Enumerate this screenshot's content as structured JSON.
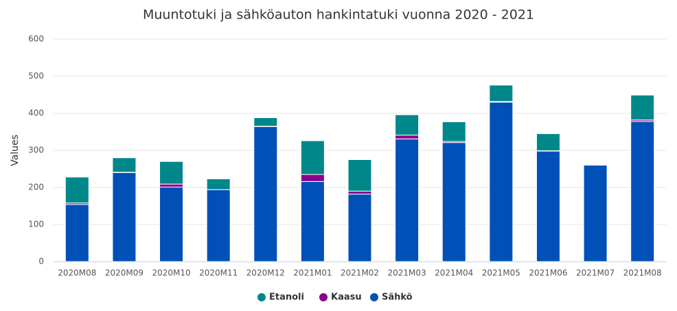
{
  "chart_data": {
    "type": "bar",
    "stacked": true,
    "title": "Muuntotuki ja sähköauton hankintatuki vuonna 2020 - 2021",
    "y_label": "Values",
    "categories": [
      "2020M08",
      "2020M09",
      "2020M10",
      "2020M11",
      "2020M12",
      "2021M01",
      "2021M02",
      "2021M03",
      "2021M04",
      "2021M05",
      "2021M06",
      "2021M07",
      "2021M08"
    ],
    "series": [
      {
        "name": "Sähkö",
        "color": "#0050b8",
        "values": [
          154,
          240,
          201,
          194,
          364,
          216,
          182,
          331,
          321,
          430,
          298,
          260,
          378
        ]
      },
      {
        "name": "Kaasu",
        "color": "#8b008b",
        "values": [
          4,
          1,
          8,
          0,
          1,
          19,
          8,
          10,
          3,
          2,
          1,
          0,
          4
        ]
      },
      {
        "name": "Etanoli",
        "color": "#00878a",
        "values": [
          70,
          39,
          61,
          29,
          23,
          91,
          85,
          55,
          53,
          44,
          46,
          0,
          67
        ]
      }
    ],
    "ylim": [
      0,
      600
    ],
    "yticks": [
      0,
      100,
      200,
      300,
      400,
      500,
      600
    ],
    "grid": true
  }
}
